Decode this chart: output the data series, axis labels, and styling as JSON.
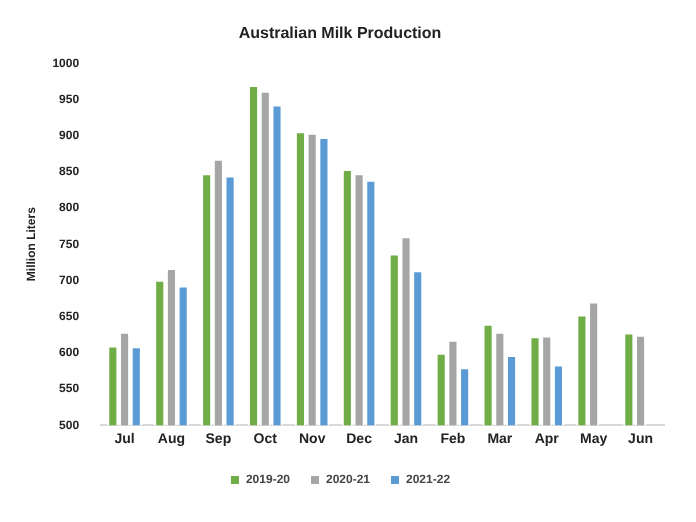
{
  "chart_data": {
    "type": "bar",
    "title": "Australian Milk Production",
    "ylabel": "Million Liters",
    "categories": [
      "Jul",
      "Aug",
      "Sep",
      "Oct",
      "Nov",
      "Dec",
      "Jan",
      "Feb",
      "Mar",
      "Apr",
      "May",
      "Jun"
    ],
    "series": [
      {
        "name": "2019-20",
        "color": "#70ad47",
        "values": [
          610,
          701,
          848,
          970,
          906,
          854,
          737,
          600,
          640,
          623,
          653,
          628
        ]
      },
      {
        "name": "2020-21",
        "color": "#a5a5a5",
        "values": [
          629,
          717,
          868,
          962,
          904,
          848,
          761,
          618,
          629,
          624,
          671,
          625
        ]
      },
      {
        "name": "2021-22",
        "color": "#5b9bd5",
        "values": [
          609,
          693,
          845,
          943,
          898,
          839,
          714,
          580,
          597,
          584,
          null,
          null
        ]
      }
    ],
    "ylim": [
      500,
      1000
    ],
    "yticks": [
      500,
      550,
      600,
      650,
      700,
      750,
      800,
      850,
      900,
      950,
      1000
    ],
    "grid": false,
    "legend": "bottom"
  }
}
